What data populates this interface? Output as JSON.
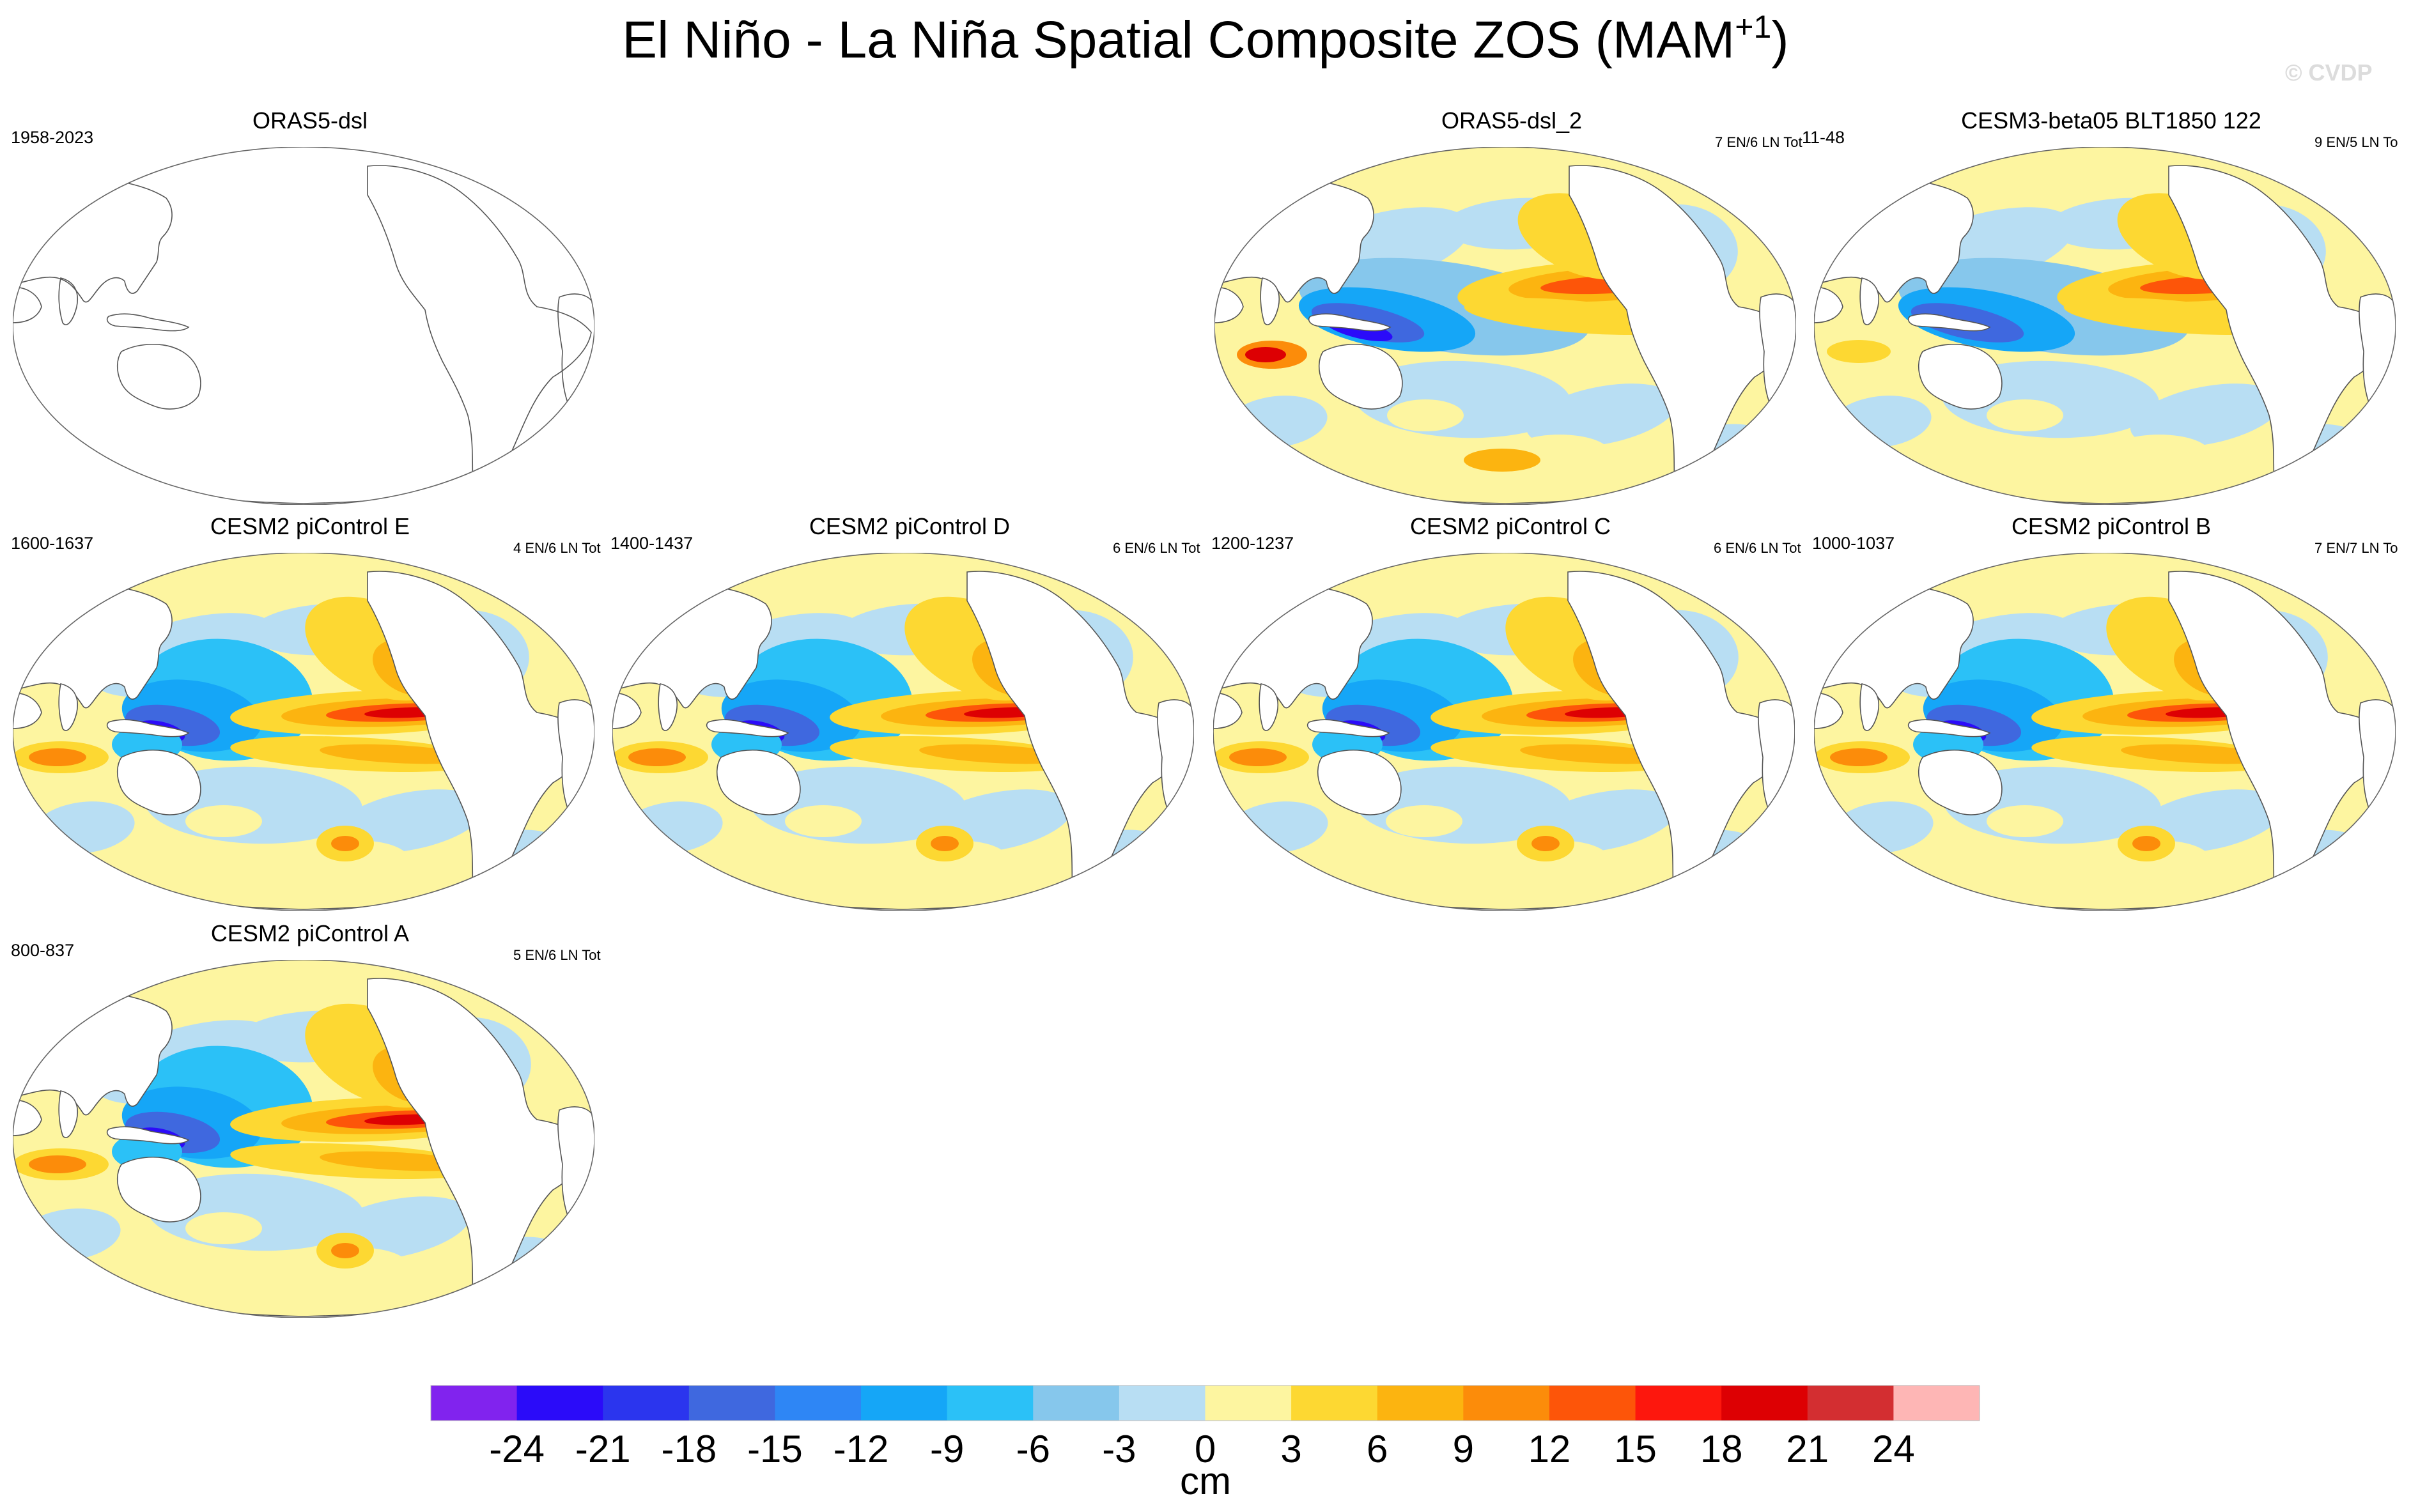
{
  "title": "El Niño - La Niña Spatial Composite ZOS (MAM",
  "title_sup": "+1",
  "title_end": ")",
  "watermark": "© CVDP",
  "chart_data": {
    "type": "heatmap",
    "title": "El Niño - La Niña Spatial Composite ZOS (MAM+1)",
    "variable": "ZOS",
    "units": "cm",
    "colorbar": {
      "label": "cm",
      "ticks": [
        "-24",
        "-21",
        "-18",
        "-15",
        "-12",
        "-9",
        "-6",
        "-3",
        "0",
        "3",
        "6",
        "9",
        "12",
        "15",
        "18",
        "21",
        "24"
      ],
      "colors": [
        "#8123ee",
        "#2b0bf9",
        "#2b35ee",
        "#3f68df",
        "#2e86f5",
        "#15a6f7",
        "#2bc1f7",
        "#86c7ec",
        "#b8def3",
        "#fdf5a0",
        "#fdd832",
        "#fcb410",
        "#fc8c0a",
        "#fd5509",
        "#fd170d",
        "#dd0003",
        "#d32e31",
        "#feb6b5"
      ]
    },
    "panels": [
      {
        "id": "orasdsl",
        "title": "ORAS5-dsl",
        "left": "1958-2023",
        "right": "",
        "empty": true,
        "pattern": "none"
      },
      {
        "id": "oras2",
        "title": "ORAS5-dsl_2",
        "left": "",
        "right": "7 EN/6 LN Tot",
        "right_extra": "11-48",
        "empty": false,
        "pattern": "reanalysis"
      },
      {
        "id": "cesm3",
        "title": "CESM3-beta05 BLT1850 122",
        "left": "",
        "right": "9 EN/5 LN To",
        "empty": false,
        "pattern": "cesm3"
      },
      {
        "id": "cesmE",
        "title": "CESM2 piControl E",
        "left": "1600-1637",
        "right": "4 EN/6 LN Tot",
        "empty": false,
        "pattern": "strong"
      },
      {
        "id": "cesmD",
        "title": "CESM2 piControl D",
        "left": "1400-1437",
        "right": "6 EN/6 LN Tot",
        "empty": false,
        "pattern": "strong"
      },
      {
        "id": "cesmC",
        "title": "CESM2 piControl C",
        "left": "1200-1237",
        "right": "6 EN/6 LN Tot",
        "empty": false,
        "pattern": "strong"
      },
      {
        "id": "cesmB",
        "title": "CESM2 piControl B",
        "left": "1000-1037",
        "right": "7 EN/7 LN To",
        "empty": false,
        "pattern": "strong"
      },
      {
        "id": "cesmA",
        "title": "CESM2 piControl A",
        "left": "800-837",
        "right": "5 EN/6 LN Tot",
        "empty": false,
        "pattern": "strong"
      }
    ]
  }
}
